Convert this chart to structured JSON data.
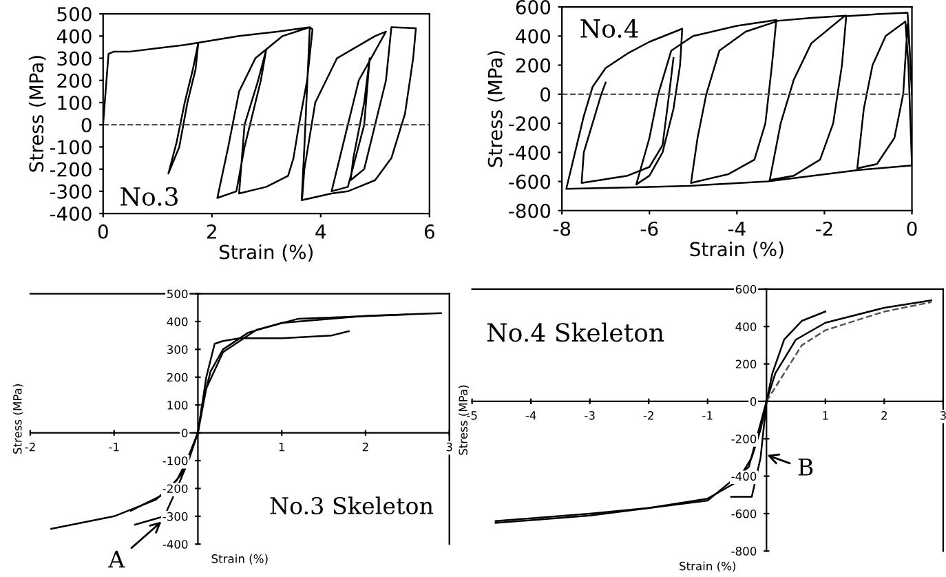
{
  "chart_data": [
    {
      "type": "line",
      "xlabel": "Strain (%)",
      "ylabel": "Stress (MPa)",
      "xlim": [
        0,
        6
      ],
      "ylim": [
        -400,
        500
      ],
      "xticks": [
        0,
        2,
        4,
        6
      ],
      "yticks": [
        -400,
        -300,
        -200,
        -100,
        0,
        100,
        200,
        300,
        400,
        500
      ],
      "annotations": [
        "No.3"
      ],
      "ref_lines": [
        {
          "axis": "y",
          "value": 0,
          "line_style": "dashed",
          "color": "#555555"
        }
      ],
      "series": [
        {
          "color": "#000000",
          "x": [
            0,
            0.03,
            0.1,
            0.2,
            0.5,
            1.0,
            1.5,
            1.75,
            1.65,
            1.5,
            1.35,
            1.2,
            1.4,
            1.55,
            1.7,
            1.75,
            2.5,
            3.2,
            3.8,
            3.85,
            3.75,
            3.6,
            3.5,
            3.4,
            3.0,
            2.5,
            2.6,
            2.85,
            3.0,
            2.9,
            2.6,
            2.45,
            2.1,
            2.3,
            2.5,
            2.8,
            3.3,
            3.8,
            3.7,
            3.65,
            4.2,
            4.5,
            5.0,
            5.3,
            5.55,
            5.7,
            5.75,
            5.3,
            5.2,
            5.0,
            4.8,
            4.55,
            4.6,
            4.8,
            4.9,
            4.8,
            4.5,
            4.2,
            4.4,
            4.7,
            5.2,
            5.0,
            4.3,
            3.9,
            3.7,
            3.66
          ],
          "values": [
            0,
            100,
            320,
            330,
            330,
            345,
            360,
            370,
            250,
            100,
            -80,
            -220,
            -100,
            100,
            250,
            370,
            400,
            420,
            440,
            430,
            200,
            0,
            -150,
            -230,
            -280,
            -310,
            0,
            200,
            340,
            200,
            -100,
            -300,
            -330,
            -100,
            150,
            300,
            400,
            440,
            -100,
            -340,
            -310,
            -300,
            -250,
            -150,
            50,
            300,
            435,
            440,
            200,
            0,
            -200,
            -250,
            -150,
            100,
            300,
            0,
            -280,
            -300,
            -100,
            200,
            420,
            400,
            300,
            100,
            -200,
            -330
          ]
        }
      ]
    },
    {
      "type": "line",
      "xlabel": "Strain (%)",
      "ylabel": "Stress (MPa)",
      "xlim": [
        -8,
        0
      ],
      "ylim": [
        -800,
        600
      ],
      "xticks": [
        -8,
        -6,
        -4,
        -2,
        0
      ],
      "yticks": [
        -800,
        -600,
        -400,
        -200,
        0,
        200,
        400,
        600
      ],
      "annotations": [
        "No.4"
      ],
      "ref_lines": [
        {
          "axis": "y",
          "value": 0,
          "line_style": "dashed",
          "color": "#555555"
        }
      ],
      "series": [
        {
          "color": "#000000",
          "x": [
            0,
            -0.05,
            -0.1,
            -0.2,
            -0.4,
            -0.8,
            -1.25,
            -1.1,
            -0.9,
            -0.6,
            -0.15,
            -0.08,
            0,
            -1.2,
            -3.3,
            -5.1,
            -6.3,
            -7.9,
            -7.7,
            -7.5,
            -7.3,
            -7.0,
            -6.5,
            -6.0,
            -5.25,
            -5.3,
            -5.45,
            -5.7,
            -6.0,
            -6.3,
            -6.0,
            -5.8,
            -5.5,
            -5.0,
            -4.0,
            -3.1,
            -3.2,
            -3.35,
            -3.6,
            -4.2,
            -5.05,
            -4.9,
            -4.7,
            -4.4,
            -3.8,
            -3.05,
            -2.3,
            -1.5,
            -1.6,
            -1.8,
            -2.1,
            -2.7,
            -3.25,
            -3.0,
            -2.7,
            -2.3,
            -1.55,
            -0.8,
            -0.1,
            -0.05,
            -0.02
          ],
          "values": [
            0,
            300,
            480,
            0,
            -300,
            -480,
            -510,
            -100,
            200,
            400,
            500,
            200,
            -490,
            -520,
            -600,
            -630,
            -640,
            -650,
            -400,
            -150,
            50,
            180,
            280,
            360,
            450,
            200,
            -100,
            -400,
            -560,
            -620,
            -300,
            0,
            300,
            400,
            470,
            510,
            200,
            -200,
            -450,
            -550,
            -610,
            -300,
            0,
            300,
            430,
            505,
            525,
            540,
            200,
            -200,
            -450,
            -560,
            -590,
            -200,
            100,
            350,
            535,
            550,
            560,
            300,
            100
          ]
        },
        {
          "color": "#000000",
          "x": [
            -7.0,
            -7.1,
            -7.3,
            -7.5,
            -7.55,
            -6.5,
            -6.0,
            -5.7,
            -5.55,
            -5.45
          ],
          "values": [
            80,
            0,
            -200,
            -400,
            -610,
            -560,
            -500,
            -350,
            0,
            250
          ]
        }
      ]
    },
    {
      "type": "line",
      "xlabel": "Strain (%)",
      "ylabel": "Stress (MPa)",
      "xlim": [
        -2,
        3
      ],
      "ylim": [
        -400,
        500
      ],
      "xticks": [
        -2,
        -1,
        {
          "value": 0,
          "label": null
        },
        1,
        2,
        3
      ],
      "yticks": [
        -400,
        -300,
        -200,
        -100,
        0,
        100,
        200,
        300,
        400,
        500
      ],
      "annotations": [
        "No.3 Skeleton",
        {
          "text": "A",
          "x": -0.4,
          "y": -310
        }
      ],
      "series": [
        {
          "color": "#000000",
          "x": [
            -1.75,
            -1.0,
            -0.5,
            -0.25,
            -0.1,
            0,
            0.05,
            0.15,
            0.3,
            0.6,
            1.0,
            2.0,
            2.9
          ],
          "values": [
            -345,
            -300,
            -240,
            -170,
            -80,
            0,
            100,
            220,
            300,
            360,
            395,
            420,
            430
          ]
        },
        {
          "color": "#000000",
          "x": [
            -0.8,
            -0.4,
            -0.2,
            0,
            0.1,
            0.2,
            0.3,
            0.5,
            1.0,
            1.6,
            1.8
          ],
          "values": [
            -280,
            -220,
            -150,
            0,
            200,
            320,
            330,
            340,
            340,
            350,
            365
          ]
        },
        {
          "color": "#000000",
          "x": [
            -0.75,
            -0.4,
            -0.25,
            -0.1,
            0,
            0.1,
            0.3,
            0.7,
            1.2,
            2.5
          ],
          "values": [
            -330,
            -300,
            -200,
            -90,
            0,
            160,
            290,
            370,
            410,
            425
          ]
        }
      ]
    },
    {
      "type": "line",
      "xlabel": "Strain (%)",
      "ylabel": "Stress (MPa)",
      "xlim": [
        -5,
        3
      ],
      "ylim": [
        -800,
        600
      ],
      "xticks": [
        -5,
        -4,
        -3,
        -2,
        -1,
        {
          "value": 0,
          "label": null
        },
        1,
        2,
        3
      ],
      "yticks": [
        -800,
        -600,
        -400,
        -200,
        0,
        200,
        400,
        600
      ],
      "annotations": [
        "No.4 Skeleton",
        {
          "text": "B",
          "x": -0.05,
          "y": -280
        }
      ],
      "series": [
        {
          "color": "#000000",
          "x": [
            -4.6,
            -3,
            -2,
            -1,
            -0.5,
            -0.25,
            -0.1,
            0,
            0.1,
            0.3,
            0.6,
            1.0
          ],
          "values": [
            -640,
            -600,
            -570,
            -520,
            -430,
            -300,
            -150,
            0,
            150,
            330,
            430,
            480
          ]
        },
        {
          "color": "#000000",
          "x": [
            -4.6,
            -3,
            -1,
            -0.3,
            0,
            0.15,
            0.5,
            1.0,
            2.0,
            2.8
          ],
          "values": [
            -650,
            -610,
            -530,
            -350,
            0,
            150,
            330,
            420,
            500,
            540
          ]
        },
        {
          "color": "#000000",
          "x": [
            -0.6,
            -0.25,
            -0.1,
            0
          ],
          "values": [
            -510,
            -510,
            -300,
            0
          ]
        },
        {
          "color": "#555555",
          "line_style": "dashed",
          "x": [
            0,
            0.2,
            0.6,
            1.0,
            2.0,
            2.8
          ],
          "values": [
            0,
            100,
            300,
            380,
            480,
            530
          ]
        }
      ]
    }
  ]
}
